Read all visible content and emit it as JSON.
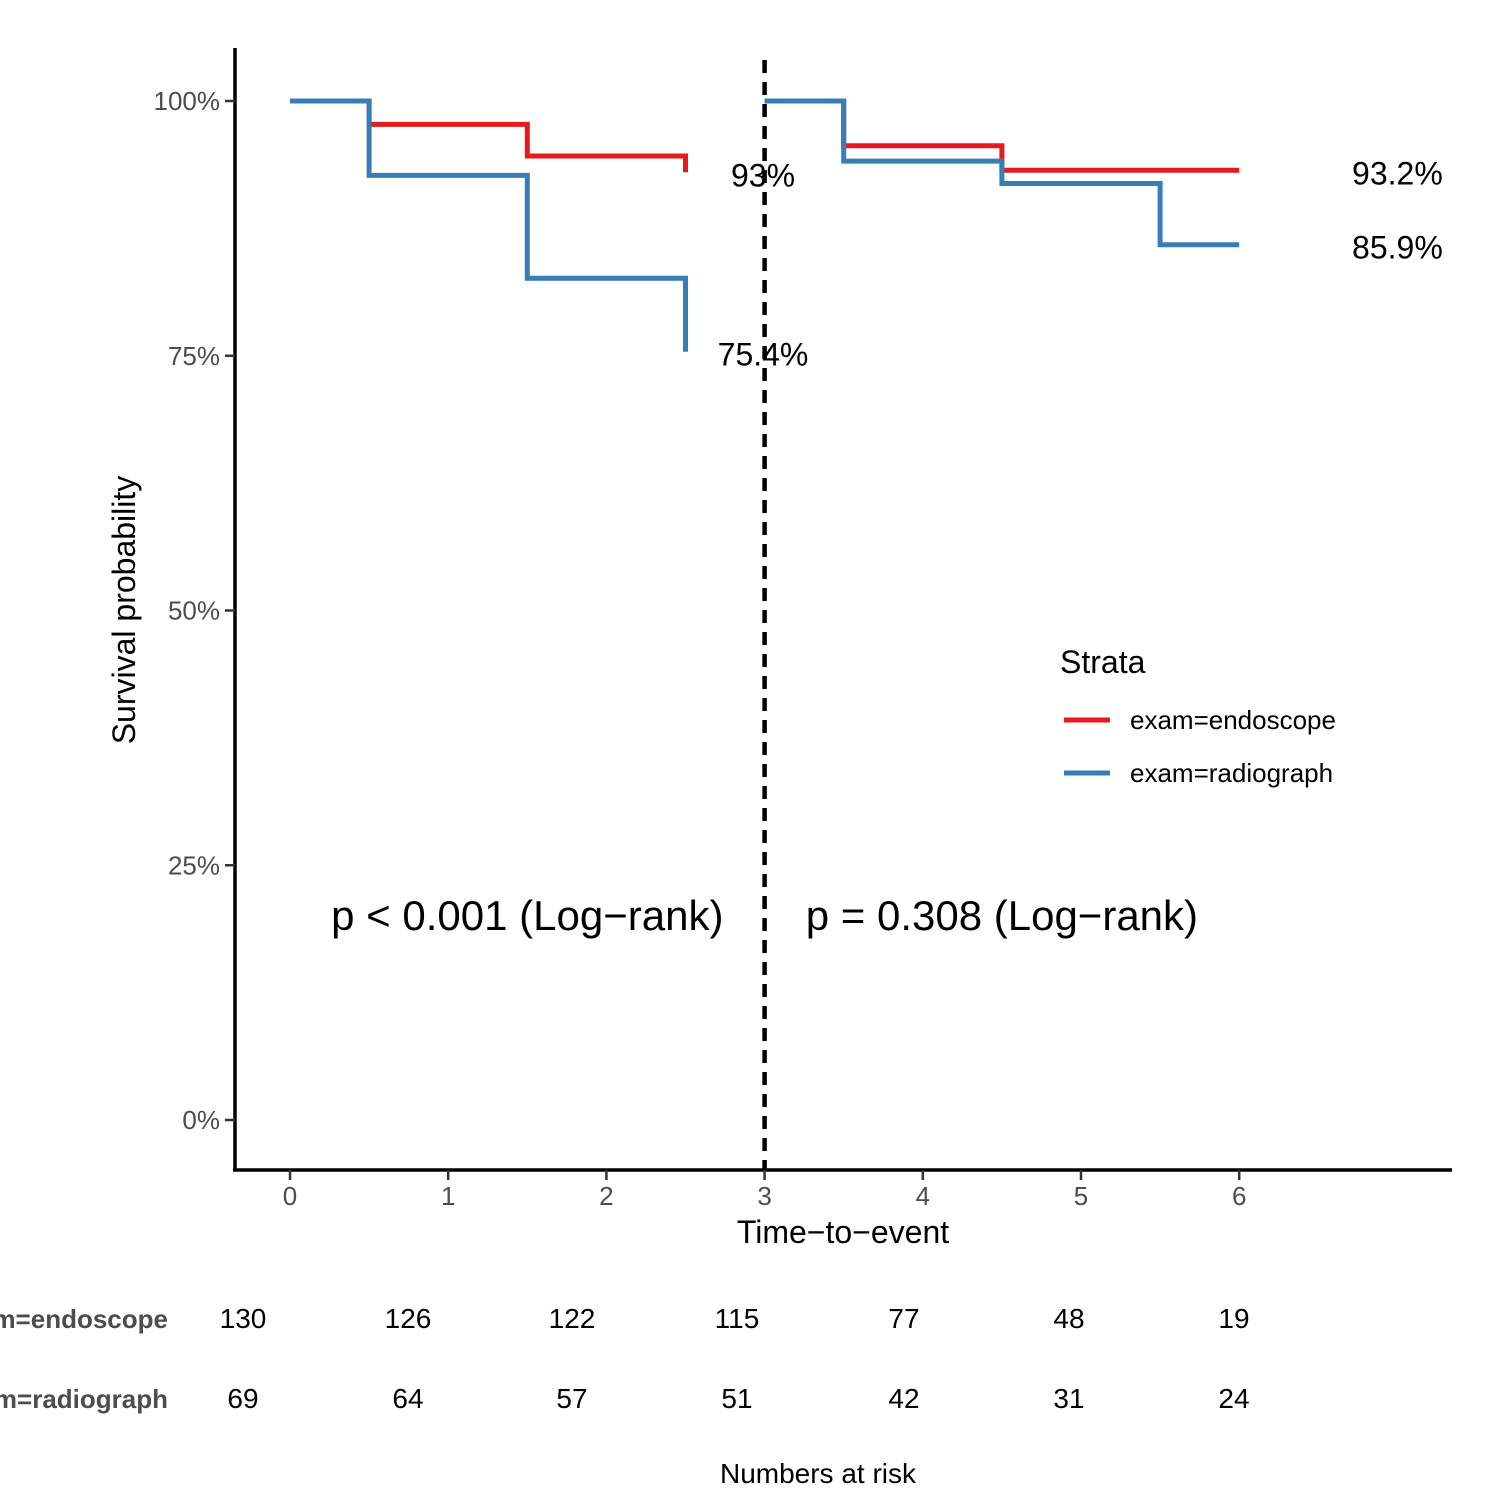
{
  "chart_data": {
    "type": "line",
    "subtype": "kaplan-meier",
    "ylabel": "Survival probability",
    "xlabel": "Time−to−event",
    "x_ticks": [
      0,
      1,
      2,
      3,
      4,
      5,
      6
    ],
    "y_ticks": [
      0,
      25,
      50,
      75,
      100
    ],
    "y_tick_labels": [
      "0%",
      "25%",
      "50%",
      "75%",
      "100%"
    ],
    "xlim": [
      -0.35,
      7.35
    ],
    "ylim": [
      -5,
      105
    ],
    "cutpoint": 3,
    "series": [
      {
        "name": "exam=endoscope",
        "color": "#e41a1c",
        "segments": [
          [
            [
              0,
              100
            ],
            [
              0.5,
              100
            ],
            [
              0.5,
              97.7
            ],
            [
              1.5,
              97.7
            ],
            [
              1.5,
              94.6
            ],
            [
              2.5,
              94.6
            ],
            [
              2.5,
              93
            ]
          ],
          [
            [
              3,
              100
            ],
            [
              3.5,
              100
            ],
            [
              3.5,
              95.6
            ],
            [
              4.5,
              95.6
            ],
            [
              4.5,
              93.2
            ],
            [
              6,
              93.2
            ]
          ]
        ]
      },
      {
        "name": "exam=radiograph",
        "color": "#377eb8",
        "segments": [
          [
            [
              0,
              100
            ],
            [
              0.5,
              100
            ],
            [
              0.5,
              92.7
            ],
            [
              1.5,
              92.7
            ],
            [
              1.5,
              82.6
            ],
            [
              2.5,
              82.6
            ],
            [
              2.5,
              75.4
            ]
          ],
          [
            [
              3,
              100
            ],
            [
              3.5,
              100
            ],
            [
              3.5,
              94.1
            ],
            [
              4.5,
              94.1
            ],
            [
              4.5,
              91.9
            ],
            [
              5.5,
              91.9
            ],
            [
              5.5,
              85.9
            ],
            [
              6,
              85.9
            ]
          ]
        ]
      }
    ],
    "end_labels": [
      {
        "text": "93%",
        "x": 2.99,
        "y": 92.8
      },
      {
        "text": "75.4%",
        "x": 2.99,
        "y": 75.2
      },
      {
        "text": "93.2%",
        "x": 7.0,
        "y": 93.0
      },
      {
        "text": "85.9%",
        "x": 7.0,
        "y": 85.7
      }
    ],
    "pvalues": [
      {
        "text": "p < 0.001 (Log−rank)",
        "x": 1.5,
        "y": 20
      },
      {
        "text": "p = 0.308 (Log−rank)",
        "x": 4.5,
        "y": 20
      }
    ],
    "legend": {
      "title": "Strata",
      "position": "right",
      "entries": [
        "exam=endoscope",
        "exam=radiograph"
      ]
    },
    "risk_table": {
      "title": "Numbers at risk",
      "rows": [
        {
          "label": "exam=endoscope",
          "values": [
            "130",
            "126",
            "122",
            "115",
            "77",
            "48",
            "19"
          ]
        },
        {
          "label": "exam=radiograph",
          "values": [
            "69",
            "64",
            "57",
            "51",
            "42",
            "31",
            "24"
          ]
        }
      ]
    }
  }
}
